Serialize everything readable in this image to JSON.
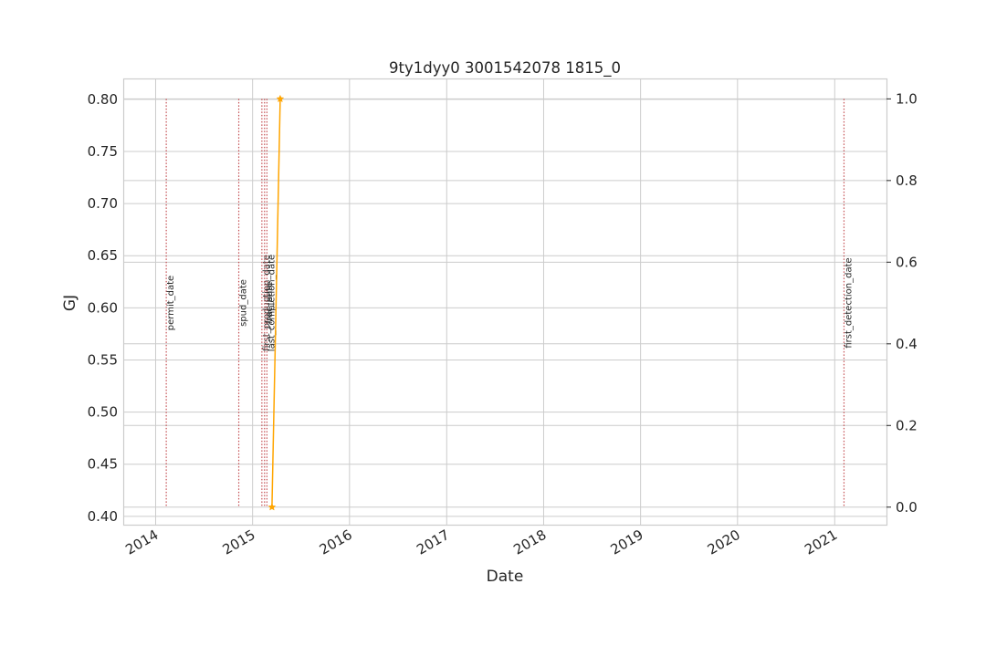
{
  "chart_data": {
    "type": "line",
    "title": "9ty1dyy0 3001542078 1815_0",
    "xlabel": "Date",
    "ylabel": "GJ",
    "ylim": [
      0.392,
      0.82
    ],
    "y_ticks": [
      "0.40",
      "0.45",
      "0.50",
      "0.55",
      "0.60",
      "0.65",
      "0.70",
      "0.75",
      "0.80"
    ],
    "y_right_lim": [
      -0.043,
      1.05
    ],
    "y_right_ticks": [
      "0.0",
      "0.2",
      "0.4",
      "0.6",
      "0.8",
      "1.0"
    ],
    "x_range": [
      "2013-09-01",
      "2021-07-15"
    ],
    "x_ticks": [
      "2014",
      "2015",
      "2016",
      "2017",
      "2018",
      "2019",
      "2020",
      "2021"
    ],
    "grid": true,
    "series": [
      {
        "name": "GJ",
        "axis": "right",
        "color": "#ffa500",
        "marker": "star",
        "points": [
          {
            "x": "2015-03-15",
            "y": 0.0
          },
          {
            "x": "2015-04-15",
            "y": 1.0
          }
        ]
      }
    ],
    "events": [
      {
        "label": "permit_date",
        "date": "2014-02-10"
      },
      {
        "label": "spud_date",
        "date": "2014-11-10"
      },
      {
        "label": "first_production_date",
        "date": "2015-02-05"
      },
      {
        "label": "frac_date",
        "date": "2015-02-15"
      },
      {
        "label": "last_completion_date",
        "date": "2015-02-24"
      },
      {
        "label": "first_detection_date",
        "date": "2021-02-05"
      }
    ],
    "colors": {
      "event_line": "#c44e52",
      "ylabel": "#1f77b4",
      "grid": "#cccccc",
      "frame": "#cccccc"
    }
  }
}
